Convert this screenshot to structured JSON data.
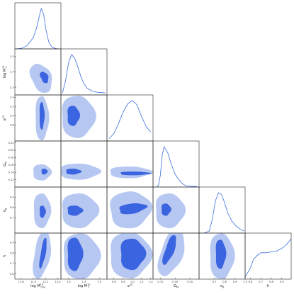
{
  "figure": {
    "type": "corner-plot"
  },
  "parameters": [
    {
      "key": "logMmin",
      "label": "log M_min^{10}",
      "ticks": [
        "11.8",
        "12.0",
        "12.2",
        "12.4"
      ]
    },
    {
      "key": "logM1",
      "label": "log M_1^{10}",
      "ticks": [
        "1.3",
        "1.4",
        "1.5"
      ]
    },
    {
      "key": "alpha",
      "label": "α^{10}",
      "ticks": [
        "0.6",
        "0.8",
        "1.0",
        "1.2",
        "1.4"
      ]
    },
    {
      "key": "OmegaM",
      "label": "Ω_M",
      "ticks": [
        "0.12",
        "0.16",
        "0.20"
      ]
    },
    {
      "key": "sigma8",
      "label": "σ_8",
      "ticks": [
        "0.7",
        "0.8",
        "0.9",
        "1.0"
      ]
    },
    {
      "key": "h",
      "label": "h",
      "ticks": [
        "0.6",
        "0.7",
        "0.8",
        "0.9"
      ]
    }
  ],
  "y_ticks": {
    "logM1": [
      "1.3",
      "1.4",
      "1.5"
    ],
    "alpha": [
      "0.8",
      "1.0",
      "1.2",
      "1.4"
    ],
    "OmegaM": [
      "0.12",
      "0.14",
      "0.16",
      "0.18",
      "0.20",
      "0.22"
    ],
    "sigma8": [
      "0.7",
      "0.8",
      "0.9"
    ],
    "h": [
      "0.6",
      "0.7",
      "0.8",
      "0.9"
    ]
  },
  "colors": {
    "inner_contour": "#3b64e0",
    "outer_contour": "#b6c8f2",
    "line": "#3b6fe0",
    "frame": "#222222"
  },
  "chart_data": {
    "type": "corner",
    "contour_levels": [
      "68%",
      "95%"
    ],
    "ranges": {
      "logMmin": [
        11.7,
        12.45
      ],
      "logM1": [
        1.25,
        1.55
      ],
      "alpha": [
        0.45,
        1.45
      ],
      "OmegaM": [
        0.1,
        0.225
      ],
      "sigma8": [
        0.55,
        1.0
      ],
      "h": [
        0.55,
        0.99
      ]
    },
    "marginals": {
      "logMmin": {
        "x": [
          11.72,
          11.8,
          11.9,
          12.0,
          12.05,
          12.1,
          12.13,
          12.17,
          12.2,
          12.25,
          12.3,
          12.36,
          12.4
        ],
        "y": [
          0,
          0.01,
          0.08,
          0.28,
          0.5,
          0.82,
          1.0,
          0.85,
          0.52,
          0.18,
          0.05,
          0.01,
          0
        ]
      },
      "logM1": {
        "x": [
          1.26,
          1.28,
          1.3,
          1.32,
          1.34,
          1.36,
          1.38,
          1.4,
          1.42,
          1.45,
          1.48,
          1.51,
          1.54
        ],
        "y": [
          0.05,
          0.35,
          0.8,
          1.0,
          0.9,
          0.7,
          0.45,
          0.28,
          0.17,
          0.1,
          0.07,
          0.06,
          0.05
        ]
      },
      "alpha": {
        "x": [
          0.5,
          0.6,
          0.7,
          0.8,
          0.9,
          1.0,
          1.1,
          1.2,
          1.3,
          1.4
        ],
        "y": [
          0.06,
          0.18,
          0.42,
          0.7,
          0.9,
          0.98,
          0.88,
          0.6,
          0.35,
          0.22
        ]
      },
      "OmegaM": {
        "x": [
          0.11,
          0.115,
          0.12,
          0.125,
          0.13,
          0.14,
          0.15,
          0.16,
          0.17,
          0.18,
          0.19,
          0.2,
          0.22
        ],
        "y": [
          0,
          0.05,
          0.3,
          0.8,
          1.0,
          0.85,
          0.55,
          0.32,
          0.18,
          0.08,
          0.03,
          0.02,
          0.01
        ]
      },
      "sigma8": {
        "x": [
          0.6,
          0.65,
          0.68,
          0.71,
          0.74,
          0.77,
          0.8,
          0.83,
          0.87,
          0.91,
          0.95,
          0.99
        ],
        "y": [
          0,
          0.05,
          0.35,
          0.8,
          1.0,
          0.95,
          0.75,
          0.5,
          0.3,
          0.18,
          0.1,
          0.05
        ]
      },
      "h": {
        "x": [
          0.55,
          0.6,
          0.63,
          0.67,
          0.7,
          0.75,
          0.8,
          0.85,
          0.9,
          0.95,
          0.99
        ],
        "y": [
          0.05,
          0.25,
          0.45,
          0.55,
          0.6,
          0.6,
          0.62,
          0.64,
          0.7,
          0.8,
          0.92
        ]
      }
    },
    "pairs": [
      {
        "x": "logMmin",
        "y": "logM1",
        "inner": {
          "c": [
            12.18,
            1.365
          ],
          "r": [
            0.06,
            0.04
          ],
          "rot": -25
        },
        "outer": {
          "c": [
            12.13,
            1.36
          ],
          "r": [
            0.16,
            0.1
          ],
          "rot": -25
        }
      },
      {
        "x": "logMmin",
        "y": "alpha",
        "inner": {
          "c": [
            12.14,
            1.0
          ],
          "r": [
            0.04,
            0.3
          ],
          "rot": 0
        },
        "outer": {
          "c": [
            12.14,
            0.95
          ],
          "r": [
            0.11,
            0.48
          ],
          "rot": 0
        }
      },
      {
        "x": "logMmin",
        "y": "OmegaM",
        "inner": {
          "c": [
            12.18,
            0.142
          ],
          "r": [
            0.05,
            0.008
          ],
          "rot": 0
        },
        "outer": {
          "c": [
            12.14,
            0.14
          ],
          "r": [
            0.15,
            0.022
          ],
          "rot": 0
        }
      },
      {
        "x": "logMmin",
        "y": "sigma8",
        "inner": {
          "c": [
            12.15,
            0.76
          ],
          "r": [
            0.05,
            0.06
          ],
          "rot": 0
        },
        "outer": {
          "c": [
            12.14,
            0.77
          ],
          "r": [
            0.14,
            0.17
          ],
          "rot": 0
        }
      },
      {
        "x": "logMmin",
        "y": "h",
        "inner": {
          "c": [
            12.16,
            0.8
          ],
          "r": [
            0.04,
            0.15
          ],
          "rot": 10
        },
        "outer": {
          "c": [
            12.14,
            0.78
          ],
          "r": [
            0.13,
            0.23
          ],
          "rot": 10
        }
      },
      {
        "x": "logM1",
        "y": "alpha",
        "inner": {
          "c": [
            1.33,
            1.0
          ],
          "r": [
            0.04,
            0.22
          ],
          "rot": 0
        },
        "outer": {
          "c": [
            1.36,
            0.98
          ],
          "r": [
            0.11,
            0.46
          ],
          "rot": 0
        }
      },
      {
        "x": "logM1",
        "y": "OmegaM",
        "inner": {
          "c": [
            1.33,
            0.142
          ],
          "r": [
            0.05,
            0.008
          ],
          "rot": 0
        },
        "outer": {
          "c": [
            1.37,
            0.142
          ],
          "r": [
            0.13,
            0.022
          ],
          "rot": 0
        }
      },
      {
        "x": "logM1",
        "y": "sigma8",
        "inner": {
          "c": [
            1.34,
            0.77
          ],
          "r": [
            0.05,
            0.05
          ],
          "rot": 0
        },
        "outer": {
          "c": [
            1.37,
            0.77
          ],
          "r": [
            0.12,
            0.17
          ],
          "rot": 0
        }
      },
      {
        "x": "logM1",
        "y": "h",
        "inner": {
          "c": [
            1.34,
            0.79
          ],
          "r": [
            0.05,
            0.16
          ],
          "rot": 0
        },
        "outer": {
          "c": [
            1.38,
            0.77
          ],
          "r": [
            0.12,
            0.22
          ],
          "rot": 0
        }
      },
      {
        "x": "alpha",
        "y": "OmegaM",
        "inner": {
          "c": [
            1.05,
            0.137
          ],
          "r": [
            0.33,
            0.005
          ],
          "rot": 0
        },
        "outer": {
          "c": [
            0.95,
            0.14
          ],
          "r": [
            0.46,
            0.016
          ],
          "rot": 0
        }
      },
      {
        "x": "alpha",
        "y": "sigma8",
        "inner": {
          "c": [
            1.0,
            0.79
          ],
          "r": [
            0.3,
            0.05
          ],
          "rot": -8
        },
        "outer": {
          "c": [
            0.95,
            0.78
          ],
          "r": [
            0.45,
            0.18
          ],
          "rot": -8
        }
      },
      {
        "x": "alpha",
        "y": "h",
        "inner": {
          "c": [
            1.0,
            0.79
          ],
          "r": [
            0.27,
            0.15
          ],
          "rot": 0
        },
        "outer": {
          "c": [
            0.95,
            0.78
          ],
          "r": [
            0.45,
            0.22
          ],
          "rot": 0
        }
      },
      {
        "x": "OmegaM",
        "y": "sigma8",
        "inner": {
          "c": [
            0.135,
            0.78
          ],
          "r": [
            0.013,
            0.06
          ],
          "rot": 0
        },
        "outer": {
          "c": [
            0.145,
            0.77
          ],
          "r": [
            0.04,
            0.17
          ],
          "rot": 0
        }
      },
      {
        "x": "OmegaM",
        "y": "h",
        "inner": {
          "c": [
            0.145,
            0.83
          ],
          "r": [
            0.012,
            0.15
          ],
          "rot": 20
        },
        "outer": {
          "c": [
            0.15,
            0.8
          ],
          "r": [
            0.03,
            0.23
          ],
          "rot": 20
        }
      },
      {
        "x": "sigma8",
        "y": "h",
        "inner": {
          "c": [
            0.76,
            0.79
          ],
          "r": [
            0.05,
            0.14
          ],
          "rot": 0
        },
        "outer": {
          "c": [
            0.77,
            0.77
          ],
          "r": [
            0.12,
            0.22
          ],
          "rot": 0
        }
      }
    ]
  }
}
